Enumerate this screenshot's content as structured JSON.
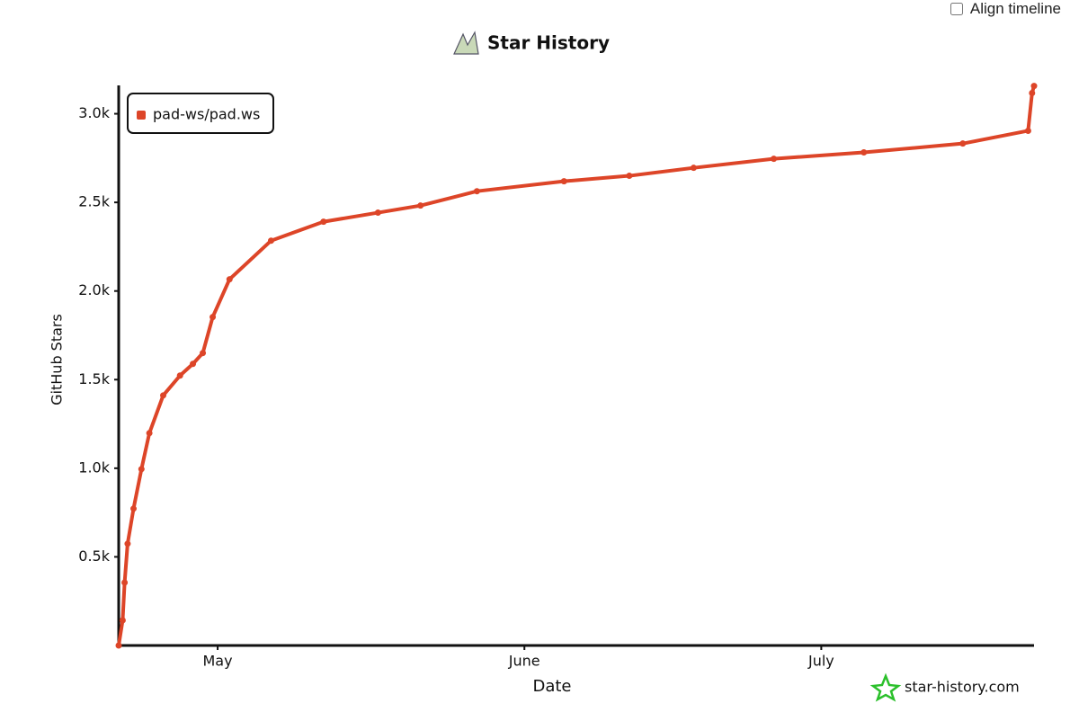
{
  "controls": {
    "align_timeline": "Align timeline"
  },
  "chart_data": {
    "type": "line",
    "title": "Star History",
    "xlabel": "Date",
    "ylabel": "GitHub Stars",
    "watermark": "star-history.com",
    "x": [
      0,
      0.4,
      0.6,
      0.9,
      1.5,
      2.3,
      3.1,
      4.5,
      6.2,
      7.5,
      8.5,
      9.5,
      11.2,
      15.4,
      20.7,
      26.2,
      30.5,
      36.2,
      45,
      51.6,
      58.1,
      66.2,
      75.3,
      85.3,
      91.9,
      92.3,
      92.5
    ],
    "series": [
      {
        "name": "pad-ws/pad.ws",
        "color": "#dd4528",
        "values": [
          0,
          142,
          355,
          574,
          772,
          995,
          1198,
          1411,
          1523,
          1589,
          1650,
          1853,
          2066,
          2284,
          2391,
          2442,
          2482,
          2563,
          2619,
          2650,
          2695,
          2746,
          2782,
          2832,
          2904,
          3117,
          3157
        ]
      }
    ],
    "xlim": [
      0,
      92.5
    ],
    "xticks": [
      {
        "value": 10,
        "label": "May"
      },
      {
        "value": 41,
        "label": "June"
      },
      {
        "value": 71,
        "label": "July"
      }
    ],
    "ylim": [
      0,
      3160
    ],
    "yticks": [
      {
        "value": 500,
        "label": "0.5k"
      },
      {
        "value": 1000,
        "label": "1.0k"
      },
      {
        "value": 1500,
        "label": "1.5k"
      },
      {
        "value": 2000,
        "label": "2.0k"
      },
      {
        "value": 2500,
        "label": "2.5k"
      },
      {
        "value": 3000,
        "label": "3.0k"
      }
    ],
    "legend": "top-left",
    "grid": false
  }
}
